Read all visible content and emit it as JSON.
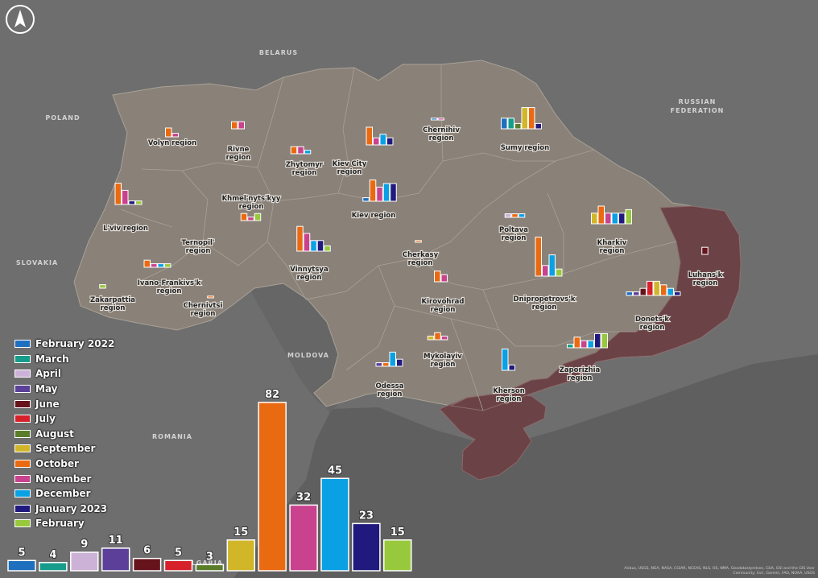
{
  "map": {
    "colors": {
      "sea": "#5f5f5f",
      "neighbors": "#6e6e6e",
      "ukraine": "#8a8178",
      "occupied": "#6b4346",
      "borders": "#a9a297"
    },
    "north_icon": "north-arrow-icon",
    "countries": [
      {
        "id": "belarus",
        "name": "BELARUS"
      },
      {
        "id": "poland",
        "name": "POLAND"
      },
      {
        "id": "russian-federation",
        "name": "RUSSIAN\nFEDERATION"
      },
      {
        "id": "slovakia",
        "name": "SLOVAKIA"
      },
      {
        "id": "moldova",
        "name": "MOLDOVA"
      },
      {
        "id": "romania",
        "name": "ROMANIA"
      },
      {
        "id": "bulgaria",
        "name": "BULGARIA"
      }
    ],
    "credits": "Airbus, USGS, NGA, NASA, CGIAR, NCEAS, NLS, OS, NMA, Geodatastyrelsen, GSA, GSI and the GIS User Community; Esri, Garmin, FAO, NOAA, USGS"
  },
  "legend": [
    {
      "label": "February 2022",
      "color": "#1f6fbf"
    },
    {
      "label": "March",
      "color": "#179c8c"
    },
    {
      "label": "April",
      "color": "#cdb2d8"
    },
    {
      "label": "May",
      "color": "#5b3f98"
    },
    {
      "label": "June",
      "color": "#66131c"
    },
    {
      "label": "July",
      "color": "#d6212a"
    },
    {
      "label": "August",
      "color": "#5a7d2a"
    },
    {
      "label": "September",
      "color": "#d1b62a"
    },
    {
      "label": "October",
      "color": "#ea6a12"
    },
    {
      "label": "November",
      "color": "#c9428e"
    },
    {
      "label": "December",
      "color": "#0aa0e4"
    },
    {
      "label": "January 2023",
      "color": "#201a7e"
    },
    {
      "label": "February",
      "color": "#98c93c"
    }
  ],
  "chart_data": {
    "type": "bar",
    "categories": [
      "February 2022",
      "March",
      "April",
      "May",
      "June",
      "July",
      "August",
      "September",
      "October",
      "November",
      "December",
      "January 2023",
      "February"
    ],
    "values": [
      5,
      4,
      9,
      11,
      6,
      5,
      3,
      15,
      82,
      32,
      45,
      23,
      15
    ],
    "data_labels": [
      "5",
      "4",
      "9",
      "11",
      "6",
      "5",
      "3",
      "15",
      "82",
      "32",
      "45",
      "23",
      "15"
    ]
  },
  "regions": [
    {
      "name": "Volyn region",
      "values": [
        0,
        0,
        0,
        0,
        0,
        0,
        0,
        0,
        5,
        2,
        0,
        0,
        0
      ]
    },
    {
      "name": "Rivne\nregion",
      "values": [
        0,
        0,
        0,
        0,
        0,
        0,
        0,
        0,
        4,
        4,
        0,
        0,
        0
      ]
    },
    {
      "name": "Zhytomyr\nregion",
      "values": [
        0,
        0,
        0,
        0,
        0,
        0,
        0,
        0,
        4,
        4,
        2,
        0,
        0
      ]
    },
    {
      "name": "Chernihiv\nregion",
      "values": [
        1,
        0,
        0,
        0,
        0,
        0,
        0,
        0,
        0,
        1,
        0,
        0,
        0
      ]
    },
    {
      "name": "Sumy region",
      "values": [
        6,
        6,
        0,
        0,
        0,
        0,
        3,
        12,
        12,
        0,
        0,
        3,
        0
      ]
    },
    {
      "name": "Kiev City\nregion",
      "values": [
        0,
        0,
        0,
        0,
        0,
        0,
        0,
        0,
        10,
        4,
        6,
        4,
        0
      ]
    },
    {
      "name": "Kiev region",
      "values": [
        2,
        0,
        0,
        0,
        0,
        0,
        0,
        0,
        12,
        8,
        10,
        10,
        0
      ]
    },
    {
      "name": "L'viv region",
      "values": [
        0,
        0,
        0,
        0,
        0,
        0,
        0,
        0,
        12,
        8,
        0,
        2,
        2
      ]
    },
    {
      "name": "Khmel'nyts'kyy\nregion",
      "values": [
        0,
        0,
        0,
        0,
        0,
        0,
        0,
        0,
        4,
        2,
        0,
        0,
        4
      ]
    },
    {
      "name": "Ternopil'\nregion",
      "values": [
        0,
        0,
        0,
        0,
        0,
        0,
        0,
        0,
        0,
        0,
        0,
        0,
        0
      ]
    },
    {
      "name": "Vinnytsya\nregion",
      "values": [
        0,
        0,
        0,
        0,
        0,
        0,
        0,
        0,
        14,
        10,
        6,
        6,
        3
      ]
    },
    {
      "name": "Ivano-Frankivs'k\nregion",
      "values": [
        0,
        0,
        0,
        0,
        0,
        0,
        0,
        0,
        4,
        2,
        2,
        0,
        2
      ]
    },
    {
      "name": "Zakarpattia\nregion",
      "values": [
        0,
        0,
        0,
        0,
        0,
        0,
        0,
        0,
        0,
        0,
        0,
        0,
        2
      ]
    },
    {
      "name": "Chernivtsi\nregion",
      "values": [
        0,
        0,
        0,
        0,
        0,
        0,
        0,
        0,
        1,
        0,
        0,
        0,
        0
      ]
    },
    {
      "name": "Cherkasy\nregion",
      "values": [
        0,
        0,
        0,
        0,
        0,
        0,
        0,
        0,
        1,
        0,
        0,
        0,
        0
      ]
    },
    {
      "name": "Poltava\nregion",
      "values": [
        0,
        0,
        2,
        0,
        0,
        0,
        0,
        0,
        2,
        0,
        2,
        0,
        0
      ]
    },
    {
      "name": "Kharkiv\nregion",
      "values": [
        0,
        0,
        0,
        0,
        0,
        0,
        0,
        6,
        10,
        6,
        6,
        6,
        8
      ]
    },
    {
      "name": "Luhans'k\nregion",
      "values": [
        0,
        0,
        0,
        0,
        4,
        0,
        0,
        0,
        0,
        0,
        0,
        0,
        0
      ]
    },
    {
      "name": "Kirovohrad\nregion",
      "values": [
        0,
        0,
        0,
        0,
        0,
        0,
        0,
        0,
        6,
        4,
        0,
        0,
        0
      ]
    },
    {
      "name": "Dnipropetrovs'k\nregion",
      "values": [
        0,
        0,
        0,
        0,
        0,
        0,
        0,
        0,
        22,
        6,
        12,
        0,
        4
      ]
    },
    {
      "name": "Donets'k\nregion",
      "values": [
        2,
        0,
        0,
        2,
        4,
        8,
        0,
        8,
        6,
        0,
        4,
        2,
        0
      ]
    },
    {
      "name": "Mykolayiv\nregion",
      "values": [
        0,
        0,
        0,
        0,
        0,
        0,
        0,
        2,
        4,
        2,
        0,
        0,
        0
      ]
    },
    {
      "name": "Odessa\nregion",
      "values": [
        0,
        0,
        0,
        2,
        0,
        0,
        0,
        0,
        2,
        0,
        8,
        4,
        0
      ]
    },
    {
      "name": "Kherson\nregion",
      "values": [
        0,
        0,
        0,
        0,
        0,
        0,
        0,
        0,
        0,
        0,
        12,
        3,
        0
      ]
    },
    {
      "name": "Zaporizhia\nregion",
      "values": [
        0,
        2,
        0,
        0,
        0,
        0,
        0,
        0,
        6,
        4,
        4,
        8,
        8
      ]
    }
  ]
}
